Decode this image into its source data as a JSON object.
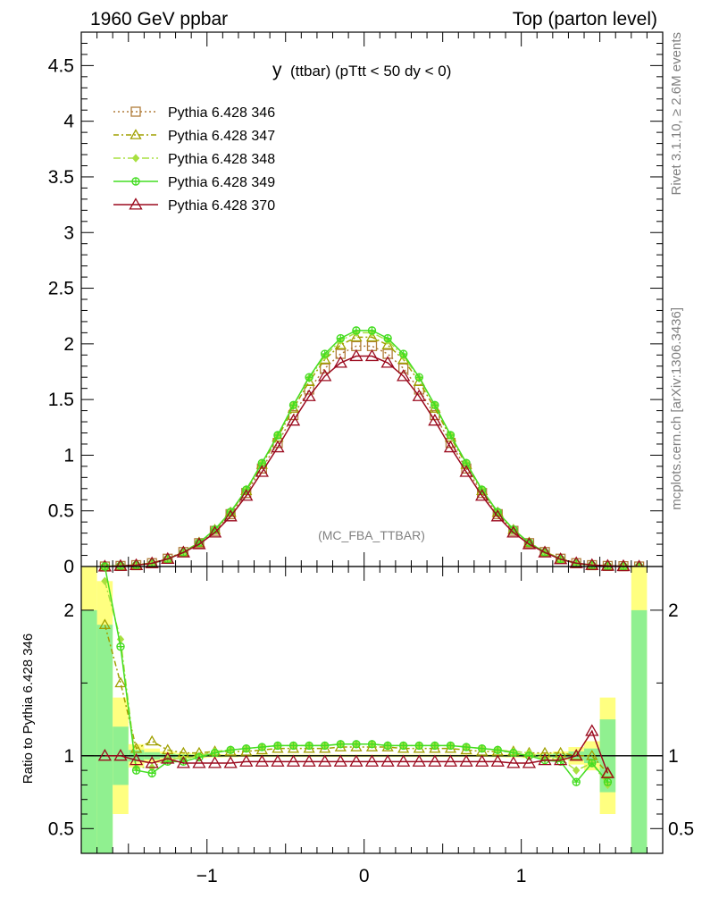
{
  "header": {
    "left_title": "1960 GeV ppbar",
    "right_title": "Top (parton level)"
  },
  "plot_title": {
    "main": "y",
    "sub": "(ttbar) (pTtt < 50 dy < 0)"
  },
  "watermark": "(MC_FBA_TTBAR)",
  "side_text": {
    "rivet": "Rivet 3.1.10, ≥ 2.6M events",
    "mcplots": "mcplots.cern.ch [arXiv:1306.3436]"
  },
  "ratio_ylabel": "Ratio to Pythia 6.428 346",
  "colors": {
    "s346": "#b07c3a",
    "s347": "#a0a000",
    "s348": "#a8e040",
    "s349": "#44dd22",
    "s370": "#9b0a1e",
    "band_yellow": "#ffff80",
    "band_green": "#90f090"
  },
  "chart_data": [
    {
      "type": "line",
      "panel": "main",
      "xlim": [
        -1.8,
        1.9
      ],
      "ylim": [
        0,
        4.8
      ],
      "yticks": [
        "0",
        "0.5",
        "1",
        "1.5",
        "2",
        "2.5",
        "3",
        "3.5",
        "4",
        "4.5"
      ],
      "legend_placement": "top-left",
      "x": [
        -1.65,
        -1.55,
        -1.45,
        -1.35,
        -1.25,
        -1.15,
        -1.05,
        -0.95,
        -0.85,
        -0.75,
        -0.65,
        -0.55,
        -0.45,
        -0.35,
        -0.25,
        -0.15,
        -0.05,
        0.05,
        0.15,
        0.25,
        0.35,
        0.45,
        0.55,
        0.65,
        0.75,
        0.85,
        0.95,
        1.05,
        1.15,
        1.25,
        1.35,
        1.45,
        1.55,
        1.65,
        1.75
      ],
      "series": [
        {
          "name": "Pythia 6.428 346",
          "marker": "square",
          "dash": "2,3",
          "values": [
            0.0,
            0.005,
            0.012,
            0.03,
            0.07,
            0.13,
            0.21,
            0.32,
            0.47,
            0.66,
            0.88,
            1.11,
            1.36,
            1.59,
            1.78,
            1.91,
            1.98,
            1.98,
            1.91,
            1.78,
            1.59,
            1.36,
            1.11,
            0.88,
            0.66,
            0.47,
            0.32,
            0.21,
            0.13,
            0.07,
            0.03,
            0.012,
            0.005,
            0.003,
            0.0
          ]
        },
        {
          "name": "Pythia 6.428 347",
          "marker": "triangle",
          "dash": "6,3,2,3",
          "values": [
            0.0,
            0.008,
            0.014,
            0.032,
            0.072,
            0.133,
            0.215,
            0.33,
            0.485,
            0.68,
            0.915,
            1.16,
            1.42,
            1.66,
            1.86,
            1.99,
            2.06,
            2.06,
            1.99,
            1.86,
            1.66,
            1.42,
            1.16,
            0.915,
            0.68,
            0.485,
            0.33,
            0.215,
            0.133,
            0.072,
            0.032,
            0.012,
            0.005,
            0.003,
            0.0
          ]
        },
        {
          "name": "Pythia 6.428 348",
          "marker": "diamond",
          "dash": "8,3,2,3",
          "values": [
            0.0,
            0.009,
            0.013,
            0.028,
            0.068,
            0.128,
            0.214,
            0.333,
            0.49,
            0.69,
            0.93,
            1.18,
            1.45,
            1.69,
            1.89,
            2.03,
            2.1,
            2.1,
            2.03,
            1.89,
            1.69,
            1.45,
            1.18,
            0.93,
            0.69,
            0.49,
            0.333,
            0.214,
            0.128,
            0.068,
            0.028,
            0.012,
            0.004,
            0.002,
            0.0
          ]
        },
        {
          "name": "Pythia 6.428 349",
          "marker": "circle-plus",
          "dash": "",
          "values": [
            0.0,
            0.008,
            0.012,
            0.027,
            0.067,
            0.127,
            0.214,
            0.333,
            0.49,
            0.69,
            0.93,
            1.18,
            1.45,
            1.7,
            1.91,
            2.05,
            2.12,
            2.12,
            2.05,
            1.91,
            1.7,
            1.45,
            1.18,
            0.93,
            0.69,
            0.49,
            0.333,
            0.214,
            0.127,
            0.067,
            0.026,
            0.011,
            0.004,
            0.002,
            0.0
          ]
        },
        {
          "name": "Pythia 6.428 370",
          "marker": "triangle-open",
          "dash": "",
          "values": [
            0.0,
            0.005,
            0.012,
            0.029,
            0.068,
            0.126,
            0.2,
            0.305,
            0.45,
            0.635,
            0.85,
            1.07,
            1.31,
            1.53,
            1.71,
            1.83,
            1.89,
            1.89,
            1.83,
            1.71,
            1.53,
            1.31,
            1.07,
            0.85,
            0.635,
            0.45,
            0.305,
            0.2,
            0.126,
            0.065,
            0.03,
            0.013,
            0.006,
            0.003,
            0.0
          ]
        }
      ]
    },
    {
      "type": "line",
      "panel": "ratio",
      "xlim": [
        -1.8,
        1.9
      ],
      "ylim": [
        0.33,
        2.3
      ],
      "yticks": [
        "0.5",
        "1",
        "2"
      ],
      "xticks": [
        "−1",
        "0",
        "1"
      ],
      "x": [
        -1.65,
        -1.55,
        -1.45,
        -1.35,
        -1.25,
        -1.15,
        -1.05,
        -0.95,
        -0.85,
        -0.75,
        -0.65,
        -0.55,
        -0.45,
        -0.35,
        -0.25,
        -0.15,
        -0.05,
        0.05,
        0.15,
        0.25,
        0.35,
        0.45,
        0.55,
        0.65,
        0.75,
        0.85,
        0.95,
        1.05,
        1.15,
        1.25,
        1.35,
        1.45,
        1.55
      ],
      "bands": {
        "yellow_halfwidth": [
          1.2,
          0.4,
          0.08,
          0.05,
          0.03,
          0.02,
          0.015,
          0.012,
          0.01,
          0.008,
          0.008,
          0.008,
          0.008,
          0.008,
          0.008,
          0.008,
          0.008,
          0.008,
          0.008,
          0.008,
          0.008,
          0.008,
          0.008,
          0.008,
          0.008,
          0.01,
          0.012,
          0.015,
          0.02,
          0.03,
          0.06,
          0.1,
          0.4
        ],
        "green_halfwidth": [
          0.9,
          0.2,
          0.04,
          0.025,
          0.015,
          0.01,
          0.008,
          0.006,
          0.005,
          0.004,
          0.004,
          0.004,
          0.004,
          0.004,
          0.004,
          0.004,
          0.004,
          0.004,
          0.004,
          0.004,
          0.004,
          0.004,
          0.004,
          0.004,
          0.004,
          0.005,
          0.006,
          0.008,
          0.01,
          0.015,
          0.03,
          0.05,
          0.25
        ],
        "edge_bins": [
          {
            "x": [
              -1.8,
              -1.7
            ],
            "yellow": [
              0.33,
              2.3
            ],
            "green": [
              0.33,
              2.0
            ]
          },
          {
            "x": [
              1.7,
              1.8
            ],
            "yellow": [
              0.33,
              2.3
            ],
            "green": [
              0.33,
              2.0
            ]
          }
        ]
      },
      "series": [
        {
          "name": "Pythia 6.428 347",
          "values": [
            1.9,
            1.5,
            1.05,
            1.1,
            1.04,
            1.02,
            1.02,
            1.03,
            1.03,
            1.03,
            1.04,
            1.05,
            1.05,
            1.05,
            1.05,
            1.06,
            1.06,
            1.06,
            1.06,
            1.05,
            1.05,
            1.05,
            1.05,
            1.04,
            1.03,
            1.03,
            1.03,
            1.02,
            1.02,
            1.02,
            1.0,
            1.0,
            0.88
          ]
        },
        {
          "name": "Pythia 6.428 348",
          "values": [
            2.2,
            1.8,
            0.92,
            0.92,
            0.98,
            0.98,
            1.0,
            1.03,
            1.04,
            1.05,
            1.06,
            1.07,
            1.07,
            1.07,
            1.07,
            1.08,
            1.08,
            1.08,
            1.07,
            1.07,
            1.07,
            1.07,
            1.07,
            1.06,
            1.05,
            1.04,
            1.03,
            1.02,
            0.98,
            0.98,
            0.9,
            0.95,
            0.8
          ]
        },
        {
          "name": "Pythia 6.428 349",
          "values": [
            2.3,
            1.75,
            0.9,
            0.88,
            0.96,
            0.96,
            0.99,
            1.02,
            1.04,
            1.05,
            1.06,
            1.07,
            1.07,
            1.07,
            1.07,
            1.08,
            1.08,
            1.08,
            1.07,
            1.07,
            1.07,
            1.07,
            1.07,
            1.06,
            1.05,
            1.04,
            1.02,
            1.0,
            0.97,
            0.96,
            0.82,
            0.95,
            0.82
          ]
        },
        {
          "name": "Pythia 6.428 370",
          "values": [
            1.0,
            1.0,
            0.97,
            0.95,
            0.98,
            0.95,
            0.95,
            0.95,
            0.95,
            0.96,
            0.96,
            0.96,
            0.96,
            0.96,
            0.96,
            0.96,
            0.96,
            0.96,
            0.96,
            0.96,
            0.96,
            0.96,
            0.96,
            0.96,
            0.96,
            0.96,
            0.95,
            0.95,
            0.97,
            0.97,
            1.0,
            1.17,
            0.88
          ]
        }
      ]
    }
  ]
}
